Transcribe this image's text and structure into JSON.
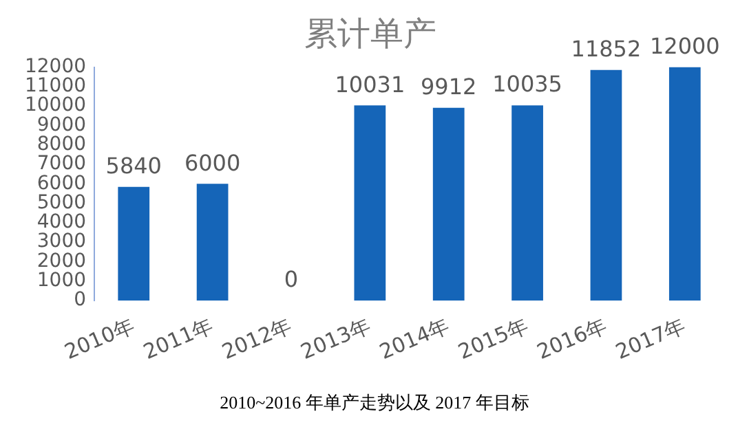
{
  "chart_data": {
    "type": "bar",
    "title": "累计单产",
    "categories": [
      "2010年",
      "2011年",
      "2012年",
      "2013年",
      "2014年",
      "2015年",
      "2016年",
      "2017年"
    ],
    "values": [
      5840,
      6000,
      0,
      10031,
      9912,
      10035,
      11852,
      12000
    ],
    "color": "#1565b8",
    "ylim": [
      0,
      12000
    ],
    "yticks": [
      0,
      1000,
      2000,
      3000,
      4000,
      5000,
      6000,
      7000,
      8000,
      9000,
      10000,
      11000,
      12000
    ],
    "grid": false,
    "legend": false,
    "data_labels": true,
    "annotations": [
      "2010~2016 年单产走势以及 2017 年目标"
    ]
  }
}
